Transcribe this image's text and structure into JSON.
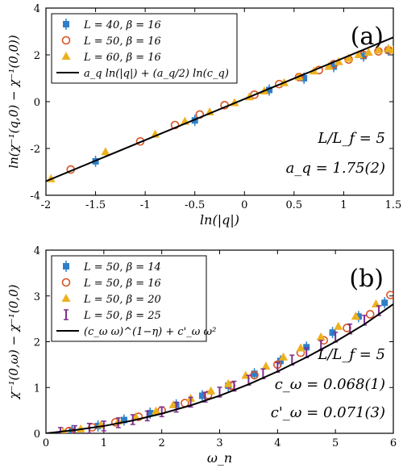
{
  "chart_data": [
    {
      "type": "scatter",
      "panel_label": "(a)",
      "xlabel": "ln(|q|)",
      "ylabel": "ln(χ⁻¹(q,0) − χ⁻¹(0,0))",
      "xlim": [
        -2,
        1.5
      ],
      "ylim": [
        -4,
        4
      ],
      "xticks": [
        -2,
        -1.5,
        -1,
        -0.5,
        0,
        0.5,
        1,
        1.5
      ],
      "yticks": [
        -4,
        -2,
        0,
        2,
        4
      ],
      "legend_position": "top-left",
      "annotations": [
        "L/L_f = 5",
        "a_q = 1.75(2)"
      ],
      "series": [
        {
          "name": "L = 40, β = 16",
          "marker": "square",
          "color": "#2f7fc8",
          "x": [
            -1.5,
            -0.5,
            0.25,
            0.6,
            0.9,
            1.2,
            1.45
          ],
          "y": [
            -2.55,
            -0.8,
            0.5,
            1.0,
            1.5,
            1.95,
            2.2
          ]
        },
        {
          "name": "L = 50, β = 16",
          "marker": "circle",
          "color": "#d95324",
          "x": [
            -1.75,
            -1.05,
            -0.7,
            -0.45,
            -0.2,
            0.1,
            0.35,
            0.55,
            0.75,
            0.9,
            1.05,
            1.2,
            1.35,
            1.45
          ],
          "y": [
            -2.9,
            -1.7,
            -1.0,
            -0.55,
            -0.15,
            0.3,
            0.75,
            1.05,
            1.35,
            1.6,
            1.8,
            2.0,
            2.15,
            2.2
          ]
        },
        {
          "name": "L = 60, β = 16",
          "marker": "triangle",
          "color": "#edb11f",
          "x": [
            -1.95,
            -1.4,
            -0.9,
            -0.6,
            -0.35,
            -0.1,
            0.05,
            0.2,
            0.4,
            0.55,
            0.7,
            0.85,
            0.95,
            1.05,
            1.15,
            1.25,
            1.35,
            1.45,
            1.5
          ],
          "y": [
            -3.3,
            -2.15,
            -1.4,
            -0.85,
            -0.45,
            -0.05,
            0.2,
            0.45,
            0.8,
            1.05,
            1.3,
            1.5,
            1.7,
            1.85,
            2.0,
            2.1,
            2.2,
            2.25,
            2.2
          ]
        },
        {
          "name": "a_q ln(|q|) + (a_q/2) ln(c_q)",
          "type": "line",
          "color": "#000000",
          "x": [
            -2,
            1.5
          ],
          "y": [
            -3.4,
            2.75
          ]
        }
      ]
    },
    {
      "type": "scatter",
      "panel_label": "(b)",
      "xlabel": "ω_n",
      "ylabel": "χ⁻¹(0,ω) − χ⁻¹(0,0)",
      "xlim": [
        0,
        6
      ],
      "ylim": [
        0,
        4
      ],
      "xticks": [
        0,
        1,
        2,
        3,
        4,
        5,
        6
      ],
      "yticks": [
        0,
        1,
        2,
        3,
        4
      ],
      "legend_position": "top-left",
      "annotations": [
        "L/L_f = 5",
        "c_ω = 0.068(1)",
        "c'_ω = 0.071(3)"
      ],
      "series": [
        {
          "name": "L = 50, β = 14",
          "marker": "square",
          "color": "#2f7fc8",
          "x": [
            0.45,
            0.9,
            1.35,
            1.8,
            2.25,
            2.7,
            3.15,
            3.6,
            4.05,
            4.5,
            4.95,
            5.4,
            5.85
          ],
          "y": [
            0.06,
            0.16,
            0.29,
            0.44,
            0.62,
            0.82,
            1.04,
            1.3,
            1.58,
            1.88,
            2.2,
            2.55,
            2.85
          ]
        },
        {
          "name": "L = 50, β = 16",
          "marker": "circle",
          "color": "#d95324",
          "x": [
            0.4,
            0.8,
            1.2,
            1.6,
            2.0,
            2.4,
            2.8,
            3.2,
            3.6,
            4.0,
            4.4,
            4.8,
            5.2,
            5.6,
            5.95
          ],
          "y": [
            0.05,
            0.13,
            0.24,
            0.36,
            0.5,
            0.66,
            0.84,
            1.04,
            1.27,
            1.5,
            1.76,
            2.03,
            2.3,
            2.6,
            3.02
          ]
        },
        {
          "name": "L = 50, β = 20",
          "marker": "triangle",
          "color": "#edb11f",
          "x": [
            0.3,
            0.6,
            0.95,
            1.25,
            1.55,
            1.9,
            2.2,
            2.5,
            2.85,
            3.15,
            3.45,
            3.8,
            4.1,
            4.4,
            4.75,
            5.05,
            5.35,
            5.7
          ],
          "y": [
            0.03,
            0.09,
            0.18,
            0.26,
            0.36,
            0.48,
            0.62,
            0.76,
            0.92,
            1.08,
            1.26,
            1.46,
            1.66,
            1.86,
            2.1,
            2.33,
            2.55,
            2.82
          ]
        },
        {
          "name": "L = 50, β = 25",
          "marker": "errorbar",
          "color": "#7e2f8e",
          "x": [
            0.25,
            0.5,
            0.75,
            1.0,
            1.25,
            1.5,
            1.75,
            2.0,
            2.25,
            2.5,
            2.75,
            3.0,
            3.25,
            3.5,
            3.75,
            4.0,
            4.25,
            4.5,
            4.75,
            5.0,
            5.25,
            5.5,
            5.75
          ],
          "y": [
            0.02,
            0.06,
            0.11,
            0.16,
            0.23,
            0.3,
            0.38,
            0.47,
            0.57,
            0.68,
            0.79,
            0.9,
            1.03,
            1.16,
            1.3,
            1.44,
            1.6,
            1.76,
            1.92,
            2.1,
            2.28,
            2.47,
            2.68
          ]
        },
        {
          "name": "(c_ω ω)^(1−η) + c'_ω ω²",
          "type": "line",
          "color": "#000000",
          "x": [
            0,
            0.5,
            1,
            1.5,
            2,
            2.5,
            3,
            3.5,
            4,
            4.5,
            5,
            5.5,
            6
          ],
          "y": [
            0,
            0.07,
            0.16,
            0.28,
            0.43,
            0.61,
            0.82,
            1.07,
            1.35,
            1.66,
            2.0,
            2.38,
            2.82
          ]
        }
      ]
    }
  ]
}
